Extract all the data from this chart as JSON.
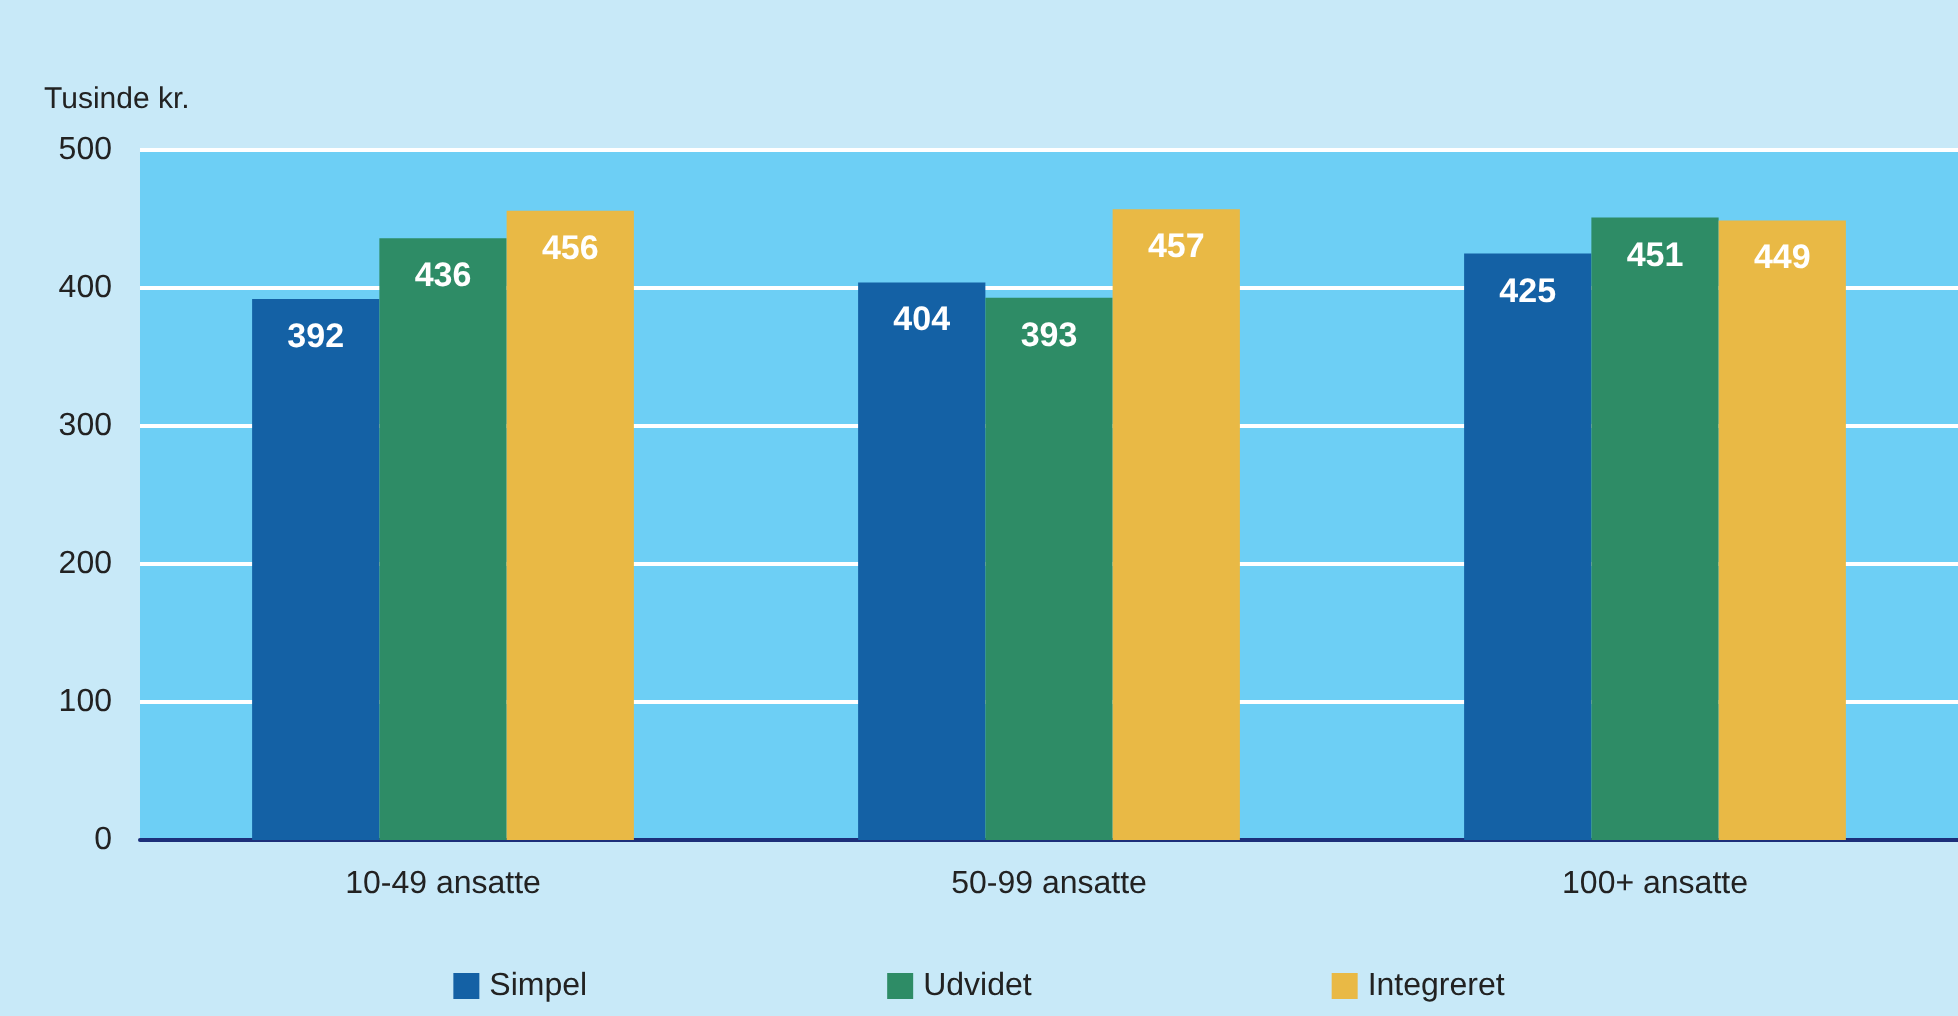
{
  "chart_data": {
    "type": "bar",
    "ylabel": "Tusinde kr.",
    "categories": [
      "10-49 ansatte",
      "50-99 ansatte",
      "100+ ansatte"
    ],
    "series": [
      {
        "name": "Simpel",
        "color": "#1461a5",
        "values": [
          392,
          404,
          425
        ]
      },
      {
        "name": "Udvidet",
        "color": "#2e8c66",
        "values": [
          436,
          393,
          451
        ]
      },
      {
        "name": "Integreret",
        "color": "#e9b945",
        "values": [
          456,
          457,
          449
        ]
      }
    ],
    "ylim": [
      0,
      500
    ],
    "yticks": [
      0,
      100,
      200,
      300,
      400,
      500
    ],
    "grid": "y",
    "legend": "bottom",
    "data_labels": true
  }
}
